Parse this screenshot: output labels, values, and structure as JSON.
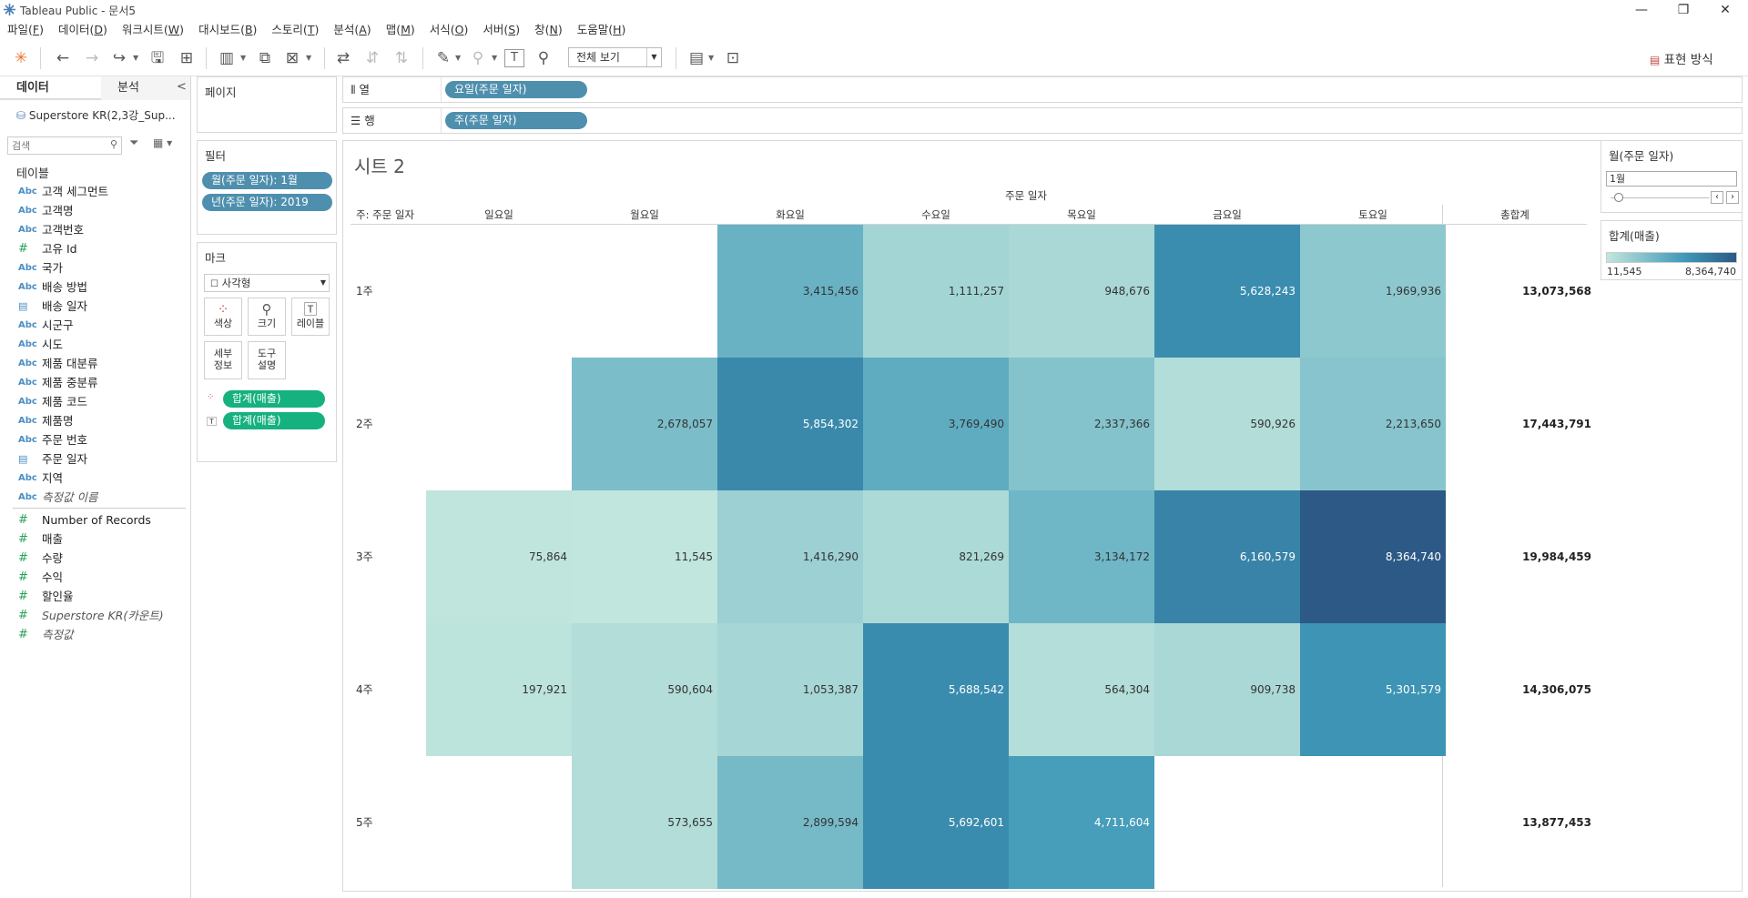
{
  "window": {
    "title": "Tableau Public - 문서5",
    "min": "—",
    "max": "❐",
    "close": "✕"
  },
  "menu": [
    {
      "label": "파일(",
      "key": "F",
      "end": ")"
    },
    {
      "label": "데이터(",
      "key": "D",
      "end": ")"
    },
    {
      "label": "워크시트(",
      "key": "W",
      "end": ")"
    },
    {
      "label": "대시보드(",
      "key": "B",
      "end": ")"
    },
    {
      "label": "스토리(",
      "key": "T",
      "end": ")"
    },
    {
      "label": "분석(",
      "key": "A",
      "end": ")"
    },
    {
      "label": "맵(",
      "key": "M",
      "end": ")"
    },
    {
      "label": "서식(",
      "key": "O",
      "end": ")"
    },
    {
      "label": "서버(",
      "key": "S",
      "end": ")"
    },
    {
      "label": "창(",
      "key": "N",
      "end": ")"
    },
    {
      "label": "도움말(",
      "key": "H",
      "end": ")"
    }
  ],
  "toolbar": {
    "fit_label": "전체 보기",
    "show_me": "표현 방식"
  },
  "left": {
    "tab_data": "데이터",
    "tab_analysis": "분석",
    "collapse": "<",
    "datasource": "Superstore KR(2,3강_Sup...",
    "search_placeholder": "검색",
    "tables_label": "테이블",
    "fields": [
      {
        "type": "abc",
        "name": "고객 세그먼트"
      },
      {
        "type": "abc",
        "name": "고객명"
      },
      {
        "type": "abc",
        "name": "고객번호"
      },
      {
        "type": "num",
        "name": "고유 Id"
      },
      {
        "type": "abc",
        "name": "국가"
      },
      {
        "type": "abc",
        "name": "배송 방법"
      },
      {
        "type": "date",
        "name": "배송 일자"
      },
      {
        "type": "abc",
        "name": "시군구"
      },
      {
        "type": "abc",
        "name": "시도"
      },
      {
        "type": "abc",
        "name": "제품 대분류"
      },
      {
        "type": "abc",
        "name": "제품 중분류"
      },
      {
        "type": "abc",
        "name": "제품 코드"
      },
      {
        "type": "abc",
        "name": "제품명"
      },
      {
        "type": "abc",
        "name": "주문 번호"
      },
      {
        "type": "date",
        "name": "주문 일자"
      },
      {
        "type": "abc",
        "name": "지역"
      },
      {
        "type": "abc",
        "name": "측정값 이름",
        "italic": true
      }
    ],
    "measures": [
      {
        "name": "Number of Records"
      },
      {
        "name": "매출"
      },
      {
        "name": "수량"
      },
      {
        "name": "수익"
      },
      {
        "name": "할인율"
      },
      {
        "name": "Superstore KR(카운트)",
        "italic": true
      },
      {
        "name": "측정값",
        "italic": true
      }
    ]
  },
  "cards": {
    "pages": "페이지",
    "filters": "필터",
    "filter_pills": [
      "월(주문 일자): 1월",
      "년(주문 일자): 2019"
    ],
    "marks": "마크",
    "mark_type": "사각형",
    "mark_buttons": [
      "색상",
      "크기",
      "레이블",
      "세부\n정보",
      "도구\n설명"
    ],
    "mark_pills": [
      "합계(매출)",
      "합계(매출)"
    ]
  },
  "shelves": {
    "columns_label": "열",
    "columns_pill": "요일(주문 일자)",
    "rows_label": "행",
    "rows_pill": "주(주문 일자)"
  },
  "view": {
    "sheet_title": "시트 2",
    "top_header": "주문 일자",
    "row_header_title": "주: 주문 일자",
    "grand_total_label": "총합계",
    "columns": [
      "일요일",
      "월요일",
      "화요일",
      "수요일",
      "목요일",
      "금요일",
      "토요일"
    ],
    "rows": [
      "1주",
      "2주",
      "3주",
      "4주",
      "5주"
    ],
    "cells": [
      [
        null,
        null,
        "3,415,456",
        "1,111,257",
        "948,676",
        "5,628,243",
        "1,969,936"
      ],
      [
        null,
        "2,678,057",
        "5,854,302",
        "3,769,490",
        "2,337,366",
        "590,926",
        "2,213,650"
      ],
      [
        "75,864",
        "11,545",
        "1,416,290",
        "821,269",
        "3,134,172",
        "6,160,579",
        "8,364,740"
      ],
      [
        "197,921",
        "590,604",
        "1,053,387",
        "5,688,542",
        "564,304",
        "909,738",
        "5,301,579"
      ],
      [
        null,
        "573,655",
        "2,899,594",
        "5,692,601",
        "4,711,604",
        null,
        null
      ]
    ],
    "totals": [
      "13,073,568",
      "17,443,791",
      "19,984,459",
      "14,306,075",
      "13,877,453"
    ]
  },
  "right": {
    "filter_title": "월(주문 일자)",
    "filter_value": "1월",
    "legend_title": "합계(매출)",
    "legend_min": "11,545",
    "legend_max": "8,364,740",
    "colors": {
      "low": "#c1e6dd",
      "high": "#2c5985",
      "mid": "#3e99b8"
    }
  },
  "chart_data": {
    "type": "heatmap",
    "title": "시트 2",
    "x": [
      "일요일",
      "월요일",
      "화요일",
      "수요일",
      "목요일",
      "금요일",
      "토요일"
    ],
    "y": [
      "1주",
      "2주",
      "3주",
      "4주",
      "5주"
    ],
    "values": [
      [
        null,
        null,
        3415456,
        1111257,
        948676,
        5628243,
        1969936
      ],
      [
        null,
        2678057,
        5854302,
        3769490,
        2337366,
        590926,
        2213650
      ],
      [
        75864,
        11545,
        1416290,
        821269,
        3134172,
        6160579,
        8364740
      ],
      [
        197921,
        590604,
        1053387,
        5688542,
        564304,
        909738,
        5301579
      ],
      [
        null,
        573655,
        2899594,
        5692601,
        4711604,
        null,
        null
      ]
    ],
    "row_totals": [
      13073568,
      17443791,
      19984459,
      14306075,
      13877453
    ],
    "color_range": [
      11545,
      8364740
    ]
  }
}
